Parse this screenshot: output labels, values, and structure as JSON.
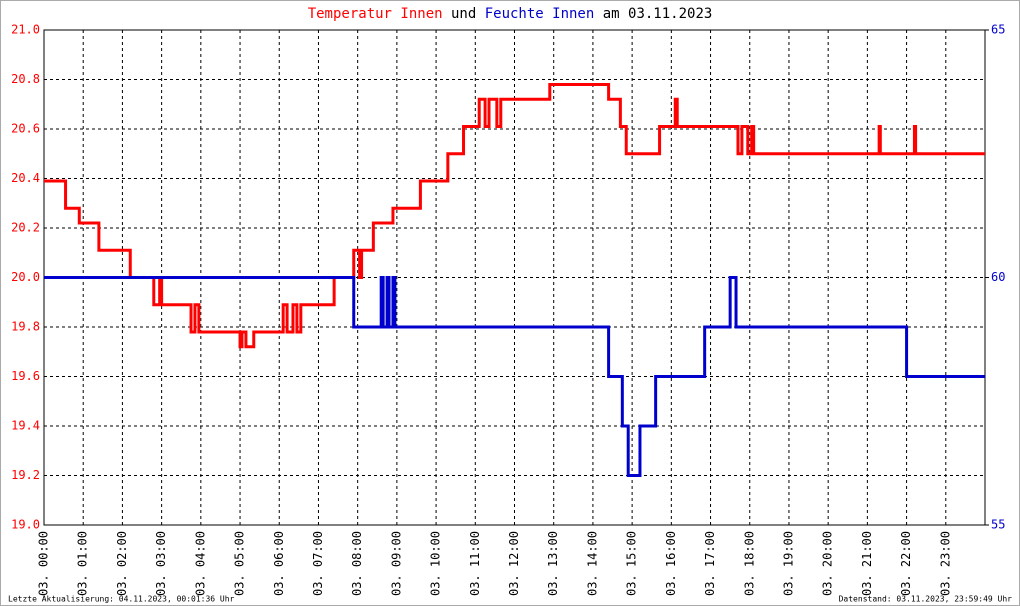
{
  "chart_data": {
    "type": "line",
    "title_joiner": "und",
    "title_suffix": "am 03.11.2023",
    "footer_left": "Letzte Aktualisierung: 04.11.2023, 00:01:36 Uhr",
    "footer_right": "Datenstand: 03.11.2023, 23:59:49 Uhr",
    "grid": true,
    "xlim": [
      0,
      24
    ],
    "xticks": [
      {
        "value": 0,
        "label": "03. 00:00"
      },
      {
        "value": 1,
        "label": "03. 01:00"
      },
      {
        "value": 2,
        "label": "03. 02:00"
      },
      {
        "value": 3,
        "label": "03. 03:00"
      },
      {
        "value": 4,
        "label": "03. 04:00"
      },
      {
        "value": 5,
        "label": "03. 05:00"
      },
      {
        "value": 6,
        "label": "03. 06:00"
      },
      {
        "value": 7,
        "label": "03. 07:00"
      },
      {
        "value": 8,
        "label": "03. 08:00"
      },
      {
        "value": 9,
        "label": "03. 09:00"
      },
      {
        "value": 10,
        "label": "03. 10:00"
      },
      {
        "value": 11,
        "label": "03. 11:00"
      },
      {
        "value": 12,
        "label": "03. 12:00"
      },
      {
        "value": 13,
        "label": "03. 13:00"
      },
      {
        "value": 14,
        "label": "03. 14:00"
      },
      {
        "value": 15,
        "label": "03. 15:00"
      },
      {
        "value": 16,
        "label": "03. 16:00"
      },
      {
        "value": 17,
        "label": "03. 17:00"
      },
      {
        "value": 18,
        "label": "03. 18:00"
      },
      {
        "value": 19,
        "label": "03. 19:00"
      },
      {
        "value": 20,
        "label": "03. 20:00"
      },
      {
        "value": 21,
        "label": "03. 21:00"
      },
      {
        "value": 22,
        "label": "03. 22:00"
      },
      {
        "value": 23,
        "label": "03. 23:00"
      }
    ],
    "ylim": [
      19.0,
      21.0
    ],
    "yticks": [
      {
        "value": 19.0,
        "label": "19.0"
      },
      19.2,
      19.4,
      19.6,
      19.8,
      {
        "value": 20.0,
        "label": "20.0"
      },
      20.2,
      20.4,
      20.6,
      20.8,
      {
        "value": 21.0,
        "label": "21.0"
      }
    ],
    "y2lim": [
      55,
      65
    ],
    "y2ticks": [
      55,
      60,
      65
    ],
    "series": [
      {
        "name": "Temperatur Innen",
        "color": "#ff0000",
        "x": [
          0,
          0.55,
          0.55,
          0.9,
          0.9,
          1.4,
          1.4,
          2.2,
          2.2,
          2.8,
          2.8,
          2.95,
          2.95,
          3.0,
          3.0,
          3.75,
          3.75,
          3.85,
          3.85,
          3.95,
          3.95,
          5.0,
          5.0,
          5.05,
          5.05,
          5.15,
          5.15,
          5.35,
          5.35,
          6.1,
          6.1,
          6.2,
          6.2,
          6.35,
          6.35,
          6.45,
          6.45,
          6.55,
          6.55,
          7.4,
          7.4,
          7.9,
          7.9,
          8.05,
          8.05,
          8.1,
          8.1,
          8.4,
          8.4,
          8.9,
          8.9,
          9.6,
          9.6,
          10.3,
          10.3,
          10.7,
          10.7,
          11.1,
          11.1,
          11.25,
          11.25,
          11.35,
          11.35,
          11.55,
          11.55,
          11.65,
          11.65,
          12.9,
          12.9,
          14.4,
          14.4,
          14.7,
          14.7,
          14.85,
          14.85,
          15.7,
          15.7,
          16.1,
          16.1,
          16.15,
          16.15,
          17.7,
          17.7,
          17.8,
          17.8,
          17.95,
          17.95,
          18.05,
          18.05,
          18.1,
          18.1,
          21.3,
          21.3,
          21.33,
          21.33,
          22.2,
          22.2,
          22.23,
          22.23,
          24
        ],
        "values": [
          20.39,
          20.39,
          20.28,
          20.28,
          20.22,
          20.22,
          20.11,
          20.11,
          20.0,
          20.0,
          19.89,
          19.89,
          20.0,
          20.0,
          19.89,
          19.89,
          19.78,
          19.78,
          19.89,
          19.89,
          19.78,
          19.78,
          19.72,
          19.72,
          19.78,
          19.78,
          19.72,
          19.72,
          19.78,
          19.78,
          19.89,
          19.89,
          19.78,
          19.78,
          19.89,
          19.89,
          19.78,
          19.78,
          19.89,
          19.89,
          20.0,
          20.0,
          20.11,
          20.11,
          20.0,
          20.0,
          20.11,
          20.11,
          20.22,
          20.22,
          20.28,
          20.28,
          20.39,
          20.39,
          20.5,
          20.5,
          20.61,
          20.61,
          20.72,
          20.72,
          20.61,
          20.61,
          20.72,
          20.72,
          20.61,
          20.61,
          20.72,
          20.72,
          20.78,
          20.78,
          20.72,
          20.72,
          20.61,
          20.61,
          20.5,
          20.5,
          20.61,
          20.61,
          20.72,
          20.72,
          20.61,
          20.61,
          20.5,
          20.5,
          20.61,
          20.61,
          20.5,
          20.5,
          20.61,
          20.61,
          20.5,
          20.5,
          20.61,
          20.61,
          20.5,
          20.5,
          20.61,
          20.61,
          20.5,
          20.5
        ]
      },
      {
        "name": "Feuchte Innen",
        "color": "#0000cc",
        "axis": "y2",
        "x": [
          0,
          7.9,
          7.9,
          8.6,
          8.6,
          8.65,
          8.65,
          8.75,
          8.75,
          8.8,
          8.8,
          8.9,
          8.9,
          8.95,
          8.95,
          14.4,
          14.4,
          14.75,
          14.75,
          14.9,
          14.9,
          15.2,
          15.2,
          15.6,
          15.6,
          16.85,
          16.85,
          17.5,
          17.5,
          17.65,
          17.65,
          22.0,
          22.0,
          24
        ],
        "values": [
          60,
          60,
          59,
          59,
          60,
          60,
          59,
          59,
          60,
          60,
          59,
          59,
          60,
          60,
          59,
          59,
          58,
          58,
          57,
          57,
          56,
          56,
          57,
          57,
          58,
          58,
          59,
          59,
          60,
          60,
          59,
          59,
          58,
          58
        ]
      }
    ]
  }
}
